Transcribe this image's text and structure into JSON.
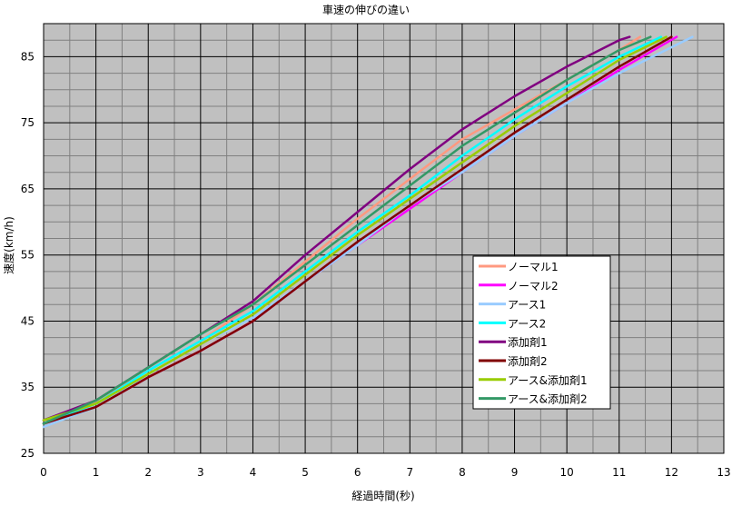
{
  "chart_data": {
    "type": "line",
    "title": "車速の伸びの違い",
    "xlabel": "経過時間(秒)",
    "ylabel": "速度(km/h)",
    "xlim": [
      0,
      13
    ],
    "ylim": [
      25,
      90
    ],
    "x_ticks": [
      "0",
      "1",
      "2",
      "3",
      "4",
      "5",
      "6",
      "7",
      "8",
      "9",
      "10",
      "11",
      "12",
      "13"
    ],
    "y_ticks": [
      "25",
      "35",
      "45",
      "55",
      "65",
      "75",
      "85"
    ],
    "grid": true,
    "legend_position": "lower-right",
    "plot_background": "#C0C0C0",
    "series": [
      {
        "name": "ノーマル1",
        "color": "#FF9980",
        "points": [
          [
            0,
            30
          ],
          [
            1,
            32.7
          ],
          [
            2,
            37.5
          ],
          [
            3,
            42
          ],
          [
            4,
            47.5
          ],
          [
            5,
            54
          ],
          [
            6,
            60.5
          ],
          [
            7,
            66.5
          ],
          [
            8,
            72.5
          ],
          [
            9,
            77
          ],
          [
            10,
            81.5
          ],
          [
            11,
            86
          ],
          [
            11.4,
            88
          ]
        ]
      },
      {
        "name": "ノーマル2",
        "color": "#FF00FF",
        "points": [
          [
            0,
            29.5
          ],
          [
            1,
            32
          ],
          [
            2,
            36.5
          ],
          [
            3,
            40.5
          ],
          [
            4,
            45
          ],
          [
            5,
            51
          ],
          [
            6,
            56.5
          ],
          [
            7,
            62
          ],
          [
            8,
            67.5
          ],
          [
            9,
            73
          ],
          [
            10,
            78
          ],
          [
            11,
            83
          ],
          [
            12.1,
            88
          ]
        ]
      },
      {
        "name": "アース1",
        "color": "#99CCFF",
        "points": [
          [
            0,
            29
          ],
          [
            1,
            32
          ],
          [
            2,
            37
          ],
          [
            3,
            41.5
          ],
          [
            4,
            45.5
          ],
          [
            5,
            51
          ],
          [
            6,
            56.5
          ],
          [
            7,
            62.5
          ],
          [
            8,
            67.5
          ],
          [
            9,
            73
          ],
          [
            10,
            78
          ],
          [
            11,
            82.5
          ],
          [
            12.4,
            88
          ]
        ]
      },
      {
        "name": "アース2",
        "color": "#00FFFF",
        "points": [
          [
            0,
            29.5
          ],
          [
            1,
            32.5
          ],
          [
            2,
            37.5
          ],
          [
            3,
            42
          ],
          [
            4,
            46.5
          ],
          [
            5,
            52.5
          ],
          [
            6,
            58.5
          ],
          [
            7,
            64
          ],
          [
            8,
            70
          ],
          [
            9,
            75.5
          ],
          [
            10,
            80.5
          ],
          [
            11,
            85
          ],
          [
            11.8,
            88
          ]
        ]
      },
      {
        "name": "添加剤1",
        "color": "#800080",
        "points": [
          [
            0,
            30
          ],
          [
            1,
            33
          ],
          [
            2,
            38
          ],
          [
            3,
            43
          ],
          [
            4,
            48
          ],
          [
            5,
            55
          ],
          [
            6,
            61.5
          ],
          [
            7,
            68
          ],
          [
            8,
            74
          ],
          [
            9,
            79
          ],
          [
            10,
            83.5
          ],
          [
            11,
            87.5
          ],
          [
            11.2,
            88
          ]
        ]
      },
      {
        "name": "添加剤2",
        "color": "#800000",
        "points": [
          [
            0,
            29.5
          ],
          [
            1,
            32
          ],
          [
            2,
            36.5
          ],
          [
            3,
            40.5
          ],
          [
            4,
            45
          ],
          [
            5,
            51
          ],
          [
            6,
            57
          ],
          [
            7,
            62.5
          ],
          [
            8,
            68
          ],
          [
            9,
            73.5
          ],
          [
            10,
            78.5
          ],
          [
            11,
            83.5
          ],
          [
            12,
            88
          ]
        ]
      },
      {
        "name": "アース&添加剤1",
        "color": "#99CC00",
        "points": [
          [
            0,
            30
          ],
          [
            1,
            32.5
          ],
          [
            2,
            37
          ],
          [
            3,
            41.5
          ],
          [
            4,
            46
          ],
          [
            5,
            52
          ],
          [
            6,
            58
          ],
          [
            7,
            63.5
          ],
          [
            8,
            69
          ],
          [
            9,
            74.5
          ],
          [
            10,
            79.5
          ],
          [
            11,
            84.5
          ],
          [
            11.9,
            88
          ]
        ]
      },
      {
        "name": "アース&添加剤2",
        "color": "#339966",
        "points": [
          [
            0,
            29.5
          ],
          [
            1,
            33
          ],
          [
            2,
            38
          ],
          [
            3,
            43
          ],
          [
            4,
            47.5
          ],
          [
            5,
            53.5
          ],
          [
            6,
            59.5
          ],
          [
            7,
            65.5
          ],
          [
            8,
            71.5
          ],
          [
            9,
            76.5
          ],
          [
            10,
            81.5
          ],
          [
            11,
            86
          ],
          [
            11.6,
            88
          ]
        ]
      }
    ]
  }
}
